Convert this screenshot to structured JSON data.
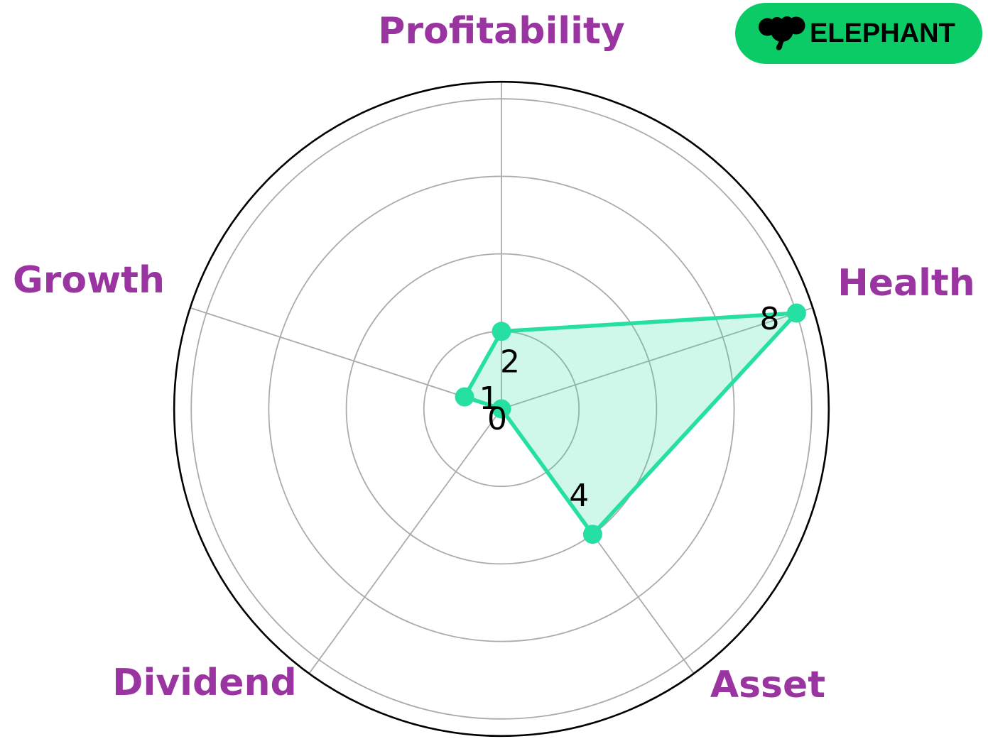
{
  "badge": {
    "label": "ELEPHANT",
    "bg_color": "#0bcb67",
    "icon_color": "#000000",
    "icon": "elephant-icon"
  },
  "chart_data": {
    "type": "radar",
    "title": "",
    "categories": [
      "Profitability",
      "Health",
      "Asset",
      "Dividend",
      "Growth"
    ],
    "values": [
      2,
      8,
      4,
      0,
      1
    ],
    "point_labels": [
      "2",
      "8",
      "4",
      "0",
      "1"
    ],
    "r_ticks": [
      2,
      4,
      6,
      8
    ],
    "r_max": 8.44,
    "start_angle_deg": 90,
    "direction": "clockwise",
    "grid": true,
    "legend": "none",
    "series_color": "#25e0a2",
    "fill_color": "rgba(37,224,162,0.22)",
    "marker_color": "#25e0a2",
    "grid_color": "#ababab",
    "outline_color": "#000000",
    "value_label_color": "#000000",
    "category_label_color": "#9a34a0"
  }
}
